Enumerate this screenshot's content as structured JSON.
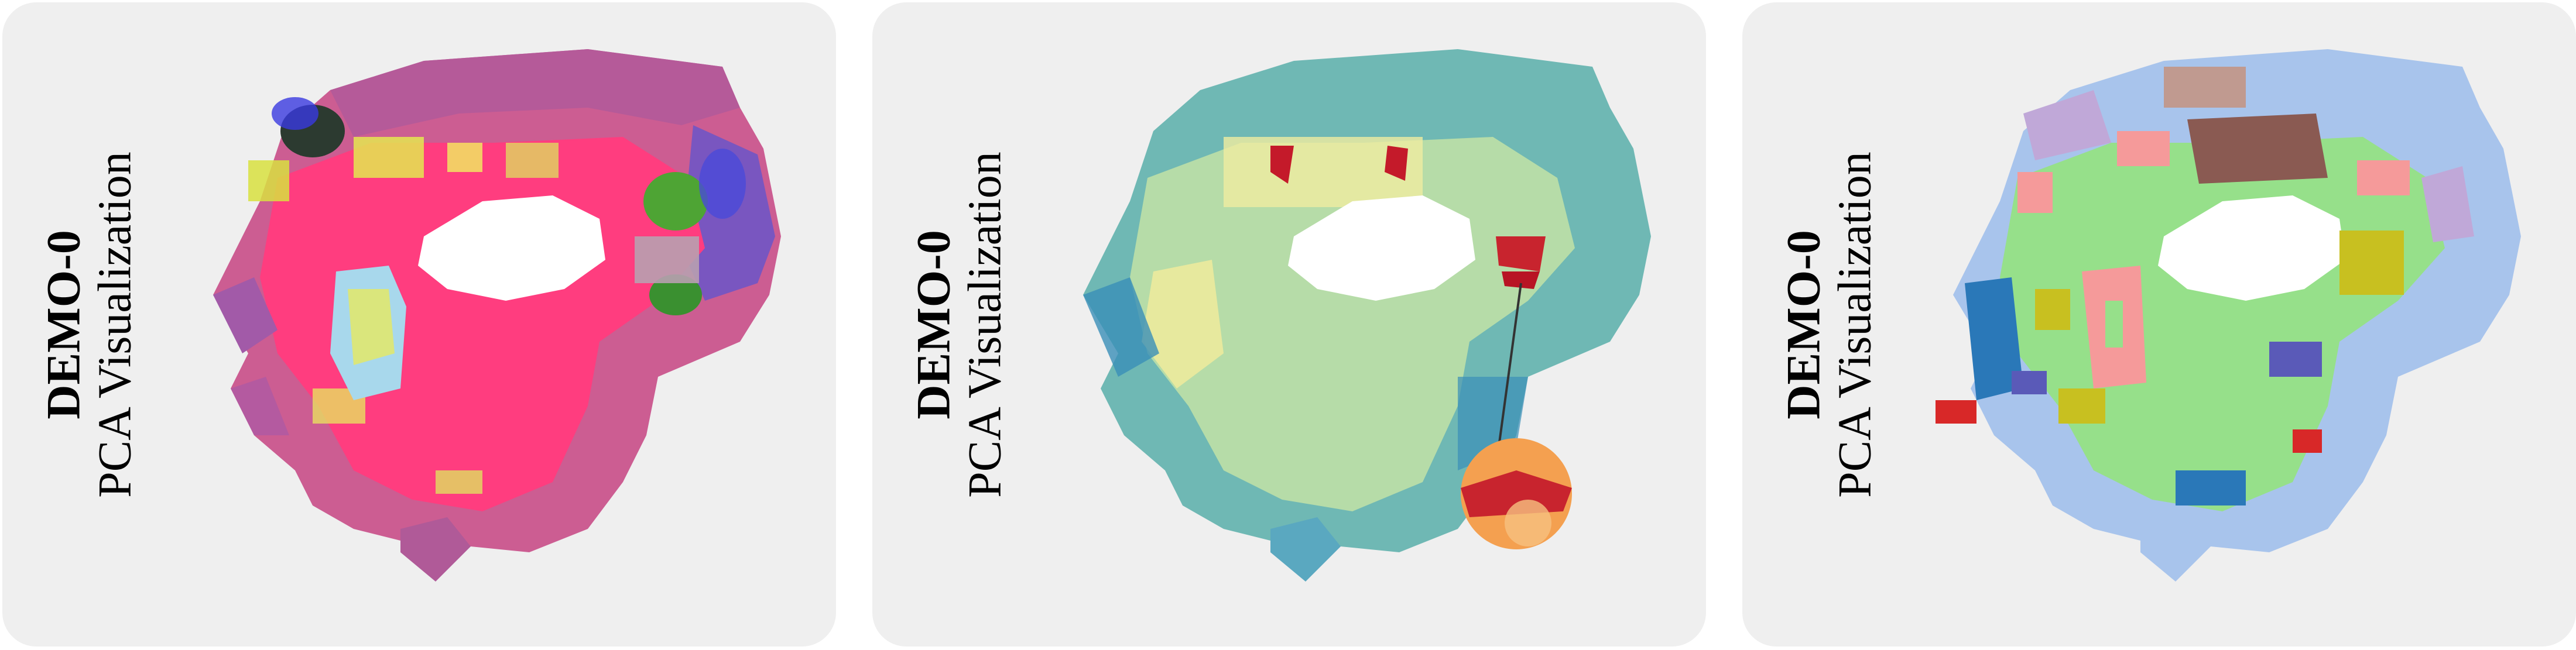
{
  "panels": [
    {
      "title": "DEMO-0",
      "subtitle": "PCA Visualization",
      "view": "pca-rgb-features",
      "colors": {
        "base": "#d05a8e",
        "floor": "#ff3d7f",
        "accent1": "#e8ec4a",
        "accent2": "#4a4ad8",
        "accent3": "#50b030",
        "accent4": "#8ad0e8"
      }
    },
    {
      "title": "DEMO-0",
      "subtitle": "PCA Visualization",
      "view": "heatmap",
      "colors": {
        "low": "#3a8fb8",
        "mid": "#7ec8b4",
        "high": "#f2f0a8",
        "hot": "#c41a2a",
        "warm": "#f4a050"
      }
    },
    {
      "title": "DEMO-0",
      "subtitle": "PCA Visualization",
      "view": "semantic-segmentation",
      "colors": {
        "floor": "#96e08a",
        "wall": "#a8c4ec",
        "table": "#8a5a52",
        "chair": "#f59a9a",
        "sofa": "#c8c020",
        "cabinet": "#2a78b8",
        "other": "#5a5ab8",
        "red": "#d82828",
        "lilac": "#c0a8d8",
        "brown": "#c09a90"
      }
    }
  ]
}
